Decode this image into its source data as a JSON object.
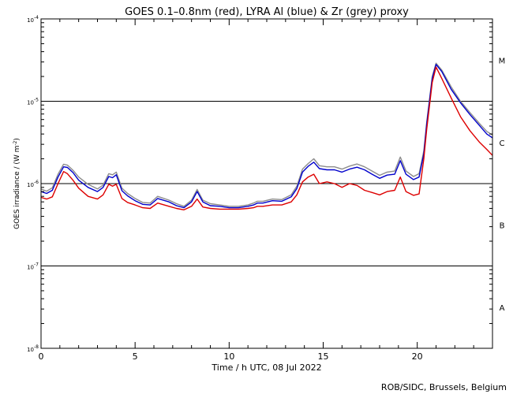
{
  "chart_data": {
    "type": "line",
    "title": "GOES 0.1–0.8nm (red), LYRA Al (blue) & Zr (grey) proxy",
    "xlabel": "Time / h UTC, 08 Jul 2022",
    "ylabel": "GOES irradiance / (W m",
    "ylabel_sup": "-2",
    "ylabel_close": ")",
    "xlim": [
      0,
      24
    ],
    "ylim_log10": [
      -8,
      -4
    ],
    "yscale": "log",
    "x_ticks": [
      {
        "value": 0,
        "label": "0"
      },
      {
        "value": 5,
        "label": "5"
      },
      {
        "value": 10,
        "label": "10"
      },
      {
        "value": 15,
        "label": "15"
      },
      {
        "value": 20,
        "label": "20"
      }
    ],
    "y_ticks": [
      {
        "exp": -4,
        "base": "10",
        "sup": "-4"
      },
      {
        "exp": -5,
        "base": "10",
        "sup": "-5"
      },
      {
        "exp": -6,
        "base": "10",
        "sup": "-6"
      },
      {
        "exp": -7,
        "base": "10",
        "sup": "-7"
      },
      {
        "exp": -8,
        "base": "10",
        "sup": "-8"
      }
    ],
    "hlines_log10": [
      -5,
      -6,
      -7
    ],
    "flare_classes": [
      {
        "label": "M",
        "log10": -4.5
      },
      {
        "label": "C",
        "log10": -5.5
      },
      {
        "label": "B",
        "log10": -6.5
      },
      {
        "label": "A",
        "log10": -7.5
      }
    ],
    "series": [
      {
        "name": "LYRA Zr proxy",
        "color": "#8c8c8c",
        "x": [
          0,
          0.3,
          0.6,
          0.9,
          1.2,
          1.4,
          1.7,
          2.0,
          2.5,
          3.0,
          3.3,
          3.6,
          3.8,
          4.0,
          4.3,
          4.6,
          5.0,
          5.4,
          5.8,
          6.2,
          6.8,
          7.2,
          7.6,
          8.0,
          8.3,
          8.6,
          9.0,
          9.5,
          10.0,
          10.5,
          11.0,
          11.3,
          11.5,
          11.8,
          12.3,
          12.8,
          13.3,
          13.6,
          13.9,
          14.2,
          14.5,
          14.8,
          15.2,
          15.6,
          16.0,
          16.4,
          16.8,
          17.2,
          17.6,
          18.0,
          18.4,
          18.8,
          19.1,
          19.4,
          19.8,
          20.1,
          20.35,
          20.5,
          20.8,
          21.0,
          21.3,
          21.8,
          22.3,
          22.8,
          23.3,
          23.7,
          24.0
        ],
        "y": [
          8.6e-07,
          8.1e-07,
          8.9e-07,
          1.3e-06,
          1.72e-06,
          1.68e-06,
          1.45e-06,
          1.2e-06,
          9.8e-07,
          8.6e-07,
          9.6e-07,
          1.32e-06,
          1.28e-06,
          1.38e-06,
          8.8e-07,
          7.6e-07,
          6.6e-07,
          5.9e-07,
          5.8e-07,
          7e-07,
          6.3e-07,
          5.7e-07,
          5.3e-07,
          6.3e-07,
          8.5e-07,
          6.3e-07,
          5.7e-07,
          5.5e-07,
          5.3e-07,
          5.3e-07,
          5.5e-07,
          5.8e-07,
          6.1e-07,
          6.1e-07,
          6.5e-07,
          6.4e-07,
          7.3e-07,
          9.3e-07,
          1.5e-06,
          1.75e-06,
          2e-06,
          1.65e-06,
          1.6e-06,
          1.6e-06,
          1.5e-06,
          1.63e-06,
          1.73e-06,
          1.6e-06,
          1.42e-06,
          1.26e-06,
          1.38e-06,
          1.42e-06,
          2.1e-06,
          1.42e-06,
          1.22e-06,
          1.32e-06,
          2.5e-06,
          5.5e-06,
          2e-05,
          2.9e-05,
          2.4e-05,
          1.5e-05,
          1e-05,
          7.3e-06,
          5.4e-06,
          4.3e-06,
          3.9e-06
        ]
      },
      {
        "name": "LYRA Al proxy",
        "color": "#0000cc",
        "x": [
          0,
          0.3,
          0.6,
          0.9,
          1.2,
          1.4,
          1.7,
          2.0,
          2.5,
          3.0,
          3.3,
          3.6,
          3.8,
          4.0,
          4.3,
          4.6,
          5.0,
          5.4,
          5.8,
          6.2,
          6.8,
          7.2,
          7.6,
          8.0,
          8.3,
          8.6,
          9.0,
          9.5,
          10.0,
          10.5,
          11.0,
          11.3,
          11.5,
          11.8,
          12.3,
          12.8,
          13.3,
          13.6,
          13.9,
          14.2,
          14.5,
          14.8,
          15.2,
          15.6,
          16.0,
          16.4,
          16.8,
          17.2,
          17.6,
          18.0,
          18.4,
          18.8,
          19.1,
          19.4,
          19.8,
          20.1,
          20.35,
          20.5,
          20.8,
          21.0,
          21.3,
          21.8,
          22.3,
          22.8,
          23.3,
          23.7,
          24.0
        ],
        "y": [
          8e-07,
          7.6e-07,
          8.3e-07,
          1.2e-06,
          1.6e-06,
          1.57e-06,
          1.36e-06,
          1.1e-06,
          9e-07,
          8e-07,
          9e-07,
          1.22e-06,
          1.18e-06,
          1.28e-06,
          8.2e-07,
          7.1e-07,
          6.2e-07,
          5.6e-07,
          5.5e-07,
          6.6e-07,
          6e-07,
          5.4e-07,
          5.1e-07,
          6e-07,
          8e-07,
          6e-07,
          5.4e-07,
          5.3e-07,
          5.1e-07,
          5.1e-07,
          5.3e-07,
          5.5e-07,
          5.8e-07,
          5.8e-07,
          6.2e-07,
          6.1e-07,
          6.9e-07,
          8.7e-07,
          1.38e-06,
          1.62e-06,
          1.82e-06,
          1.52e-06,
          1.47e-06,
          1.47e-06,
          1.38e-06,
          1.5e-06,
          1.58e-06,
          1.47e-06,
          1.3e-06,
          1.16e-06,
          1.27e-06,
          1.3e-06,
          1.9e-06,
          1.3e-06,
          1.12e-06,
          1.2e-06,
          2.3e-06,
          5.2e-06,
          1.9e-05,
          2.8e-05,
          2.3e-05,
          1.4e-05,
          9.6e-06,
          6.9e-06,
          5.1e-06,
          4e-06,
          3.6e-06
        ]
      },
      {
        "name": "GOES 0.1–0.8nm",
        "color": "#dd0000",
        "x": [
          0,
          0.3,
          0.6,
          0.9,
          1.2,
          1.4,
          1.7,
          2.0,
          2.5,
          3.0,
          3.3,
          3.6,
          3.8,
          4.0,
          4.3,
          4.6,
          5.0,
          5.4,
          5.8,
          6.2,
          6.8,
          7.2,
          7.6,
          8.0,
          8.3,
          8.6,
          9.0,
          9.5,
          10.0,
          10.5,
          11.0,
          11.3,
          11.5,
          11.8,
          12.3,
          12.8,
          13.3,
          13.6,
          13.9,
          14.2,
          14.5,
          14.8,
          15.2,
          15.6,
          16.0,
          16.4,
          16.8,
          17.2,
          17.6,
          18.0,
          18.4,
          18.8,
          19.1,
          19.4,
          19.8,
          20.1,
          20.35,
          20.5,
          20.8,
          21.0,
          21.3,
          21.8,
          22.3,
          22.8,
          23.3,
          23.7,
          24.0
        ],
        "y": [
          6.8e-07,
          6.5e-07,
          6.9e-07,
          1e-06,
          1.4e-06,
          1.32e-06,
          1.1e-06,
          8.8e-07,
          7e-07,
          6.5e-07,
          7.3e-07,
          9.8e-07,
          9.3e-07,
          9.8e-07,
          6.6e-07,
          5.9e-07,
          5.5e-07,
          5.1e-07,
          5e-07,
          5.8e-07,
          5.3e-07,
          5e-07,
          4.8e-07,
          5.3e-07,
          6.5e-07,
          5.2e-07,
          5e-07,
          4.9e-07,
          4.9e-07,
          4.9e-07,
          5e-07,
          5.1e-07,
          5.3e-07,
          5.3e-07,
          5.5e-07,
          5.5e-07,
          6e-07,
          7.3e-07,
          1.05e-06,
          1.2e-06,
          1.3e-06,
          1e-06,
          1.05e-06,
          1e-06,
          9e-07,
          1e-06,
          9.5e-07,
          8.3e-07,
          7.8e-07,
          7.3e-07,
          8e-07,
          8.3e-07,
          1.2e-06,
          8e-07,
          7.2e-07,
          7.5e-07,
          2e-06,
          4.5e-06,
          1.7e-05,
          2.6e-05,
          1.9e-05,
          1.1e-05,
          6.5e-06,
          4.4e-06,
          3.2e-06,
          2.6e-06,
          2.2e-06
        ]
      }
    ],
    "credit": "ROB/SIDC, Brussels, Belgium"
  }
}
